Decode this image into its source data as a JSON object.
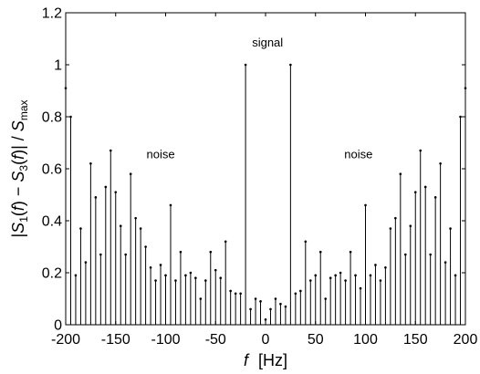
{
  "chart_data": {
    "type": "stem",
    "title": "",
    "xlabel_var": "f",
    "xlabel_unit": "[Hz]",
    "ylabel": "|S1(f) − S3(f)| / Smax",
    "xlim": [
      -200,
      200
    ],
    "ylim": [
      0,
      1.2
    ],
    "xticks": [
      -200,
      -150,
      -100,
      -50,
      0,
      50,
      100,
      150,
      200
    ],
    "yticks": [
      0,
      0.2,
      0.4,
      0.6,
      0.8,
      1,
      1.2
    ],
    "ytick_labels": [
      "0",
      "0.2",
      "0.4",
      "0.6",
      "0.8",
      "1",
      "1.2"
    ],
    "grid": false,
    "annotations": [
      {
        "text": "noise",
        "x": -105,
        "y": 0.64
      },
      {
        "text": "signal",
        "x": 2,
        "y": 1.07
      },
      {
        "text": "noise",
        "x": 93,
        "y": 0.64
      }
    ],
    "x": [
      -200,
      -195,
      -190,
      -185,
      -180,
      -175,
      -170,
      -165,
      -160,
      -155,
      -150,
      -145,
      -140,
      -135,
      -130,
      -125,
      -120,
      -115,
      -110,
      -105,
      -100,
      -95,
      -90,
      -85,
      -80,
      -75,
      -70,
      -65,
      -60,
      -55,
      -50,
      -45,
      -40,
      -35,
      -30,
      -25,
      -20,
      -15,
      -10,
      -5,
      0,
      5,
      10,
      15,
      20,
      25,
      30,
      35,
      40,
      45,
      50,
      55,
      60,
      65,
      70,
      75,
      80,
      85,
      90,
      95,
      100,
      105,
      110,
      115,
      120,
      125,
      130,
      135,
      140,
      145,
      150,
      155,
      160,
      165,
      170,
      175,
      180,
      185,
      190,
      195,
      200
    ],
    "values": [
      0.91,
      0.8,
      0.19,
      0.37,
      0.24,
      0.62,
      0.49,
      0.27,
      0.53,
      0.67,
      0.51,
      0.38,
      0.27,
      0.58,
      0.41,
      0.37,
      0.3,
      0.22,
      0.17,
      0.23,
      0.19,
      0.46,
      0.17,
      0.28,
      0.19,
      0.2,
      0.18,
      0.1,
      0.17,
      0.28,
      0.21,
      0.18,
      0.32,
      0.13,
      0.12,
      0.12,
      1.0,
      0.06,
      0.1,
      0.09,
      0.02,
      0.06,
      0.1,
      0.08,
      0.07,
      1.0,
      0.12,
      0.13,
      0.32,
      0.17,
      0.19,
      0.28,
      0.1,
      0.18,
      0.19,
      0.2,
      0.17,
      0.28,
      0.19,
      0.14,
      0.46,
      0.19,
      0.23,
      0.17,
      0.22,
      0.37,
      0.41,
      0.58,
      0.27,
      0.38,
      0.51,
      0.67,
      0.53,
      0.27,
      0.49,
      0.62,
      0.24,
      0.37,
      0.19,
      0.8,
      0.91
    ]
  }
}
